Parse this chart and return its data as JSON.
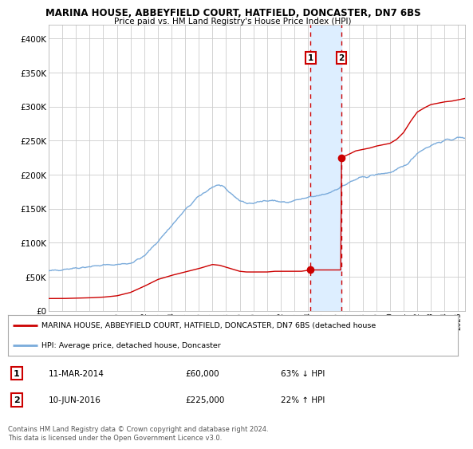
{
  "title": "MARINA HOUSE, ABBEYFIELD COURT, HATFIELD, DONCASTER, DN7 6BS",
  "subtitle": "Price paid vs. HM Land Registry's House Price Index (HPI)",
  "xlim_start": 1995.0,
  "xlim_end": 2025.5,
  "ylim": [
    0,
    420000
  ],
  "yticks": [
    0,
    50000,
    100000,
    150000,
    200000,
    250000,
    300000,
    350000,
    400000
  ],
  "ytick_labels": [
    "£0",
    "£50K",
    "£100K",
    "£150K",
    "£200K",
    "£250K",
    "£300K",
    "£350K",
    "£400K"
  ],
  "sale1_date": 2014.19,
  "sale1_price": 60000,
  "sale1_label": "1",
  "sale2_date": 2016.44,
  "sale2_price": 225000,
  "sale2_label": "2",
  "hpi_line_color": "#7aabdb",
  "price_line_color": "#cc0000",
  "bg_color": "#ffffff",
  "plot_bg_color": "#ffffff",
  "grid_color": "#cccccc",
  "shade_color": "#ddeeff",
  "dashed_line_color": "#cc0000",
  "legend_label_red": "MARINA HOUSE, ABBEYFIELD COURT, HATFIELD, DONCASTER, DN7 6BS (detached house",
  "legend_label_blue": "HPI: Average price, detached house, Doncaster",
  "table_row1": [
    "1",
    "11-MAR-2014",
    "£60,000",
    "63% ↓ HPI"
  ],
  "table_row2": [
    "2",
    "10-JUN-2016",
    "£225,000",
    "22% ↑ HPI"
  ],
  "footnote": "Contains HM Land Registry data © Crown copyright and database right 2024.\nThis data is licensed under the Open Government Licence v3.0.",
  "xticks": [
    1995,
    1996,
    1997,
    1998,
    1999,
    2000,
    2001,
    2002,
    2003,
    2004,
    2005,
    2006,
    2007,
    2008,
    2009,
    2010,
    2011,
    2012,
    2013,
    2014,
    2015,
    2016,
    2017,
    2018,
    2019,
    2020,
    2021,
    2022,
    2023,
    2024,
    2025
  ],
  "hpi_anchors_x": [
    1995,
    1996,
    1997,
    1998,
    1999,
    2000,
    2001,
    2002,
    2003,
    2004,
    2005,
    2006,
    2007,
    2007.5,
    2008,
    2008.5,
    2009,
    2009.5,
    2010,
    2010.5,
    2011,
    2011.5,
    2012,
    2012.5,
    2013,
    2013.5,
    2014,
    2014.5,
    2015,
    2015.5,
    2016,
    2016.5,
    2017,
    2017.5,
    2018,
    2018.5,
    2019,
    2019.5,
    2020,
    2020.5,
    2021,
    2021.5,
    2022,
    2022.5,
    2023,
    2023.5,
    2024,
    2024.5,
    2025,
    2025.5
  ],
  "hpi_anchors_y": [
    58000,
    61000,
    63000,
    65000,
    67000,
    68000,
    70000,
    80000,
    102000,
    125000,
    148000,
    168000,
    182000,
    185000,
    178000,
    170000,
    162000,
    158000,
    158000,
    160000,
    163000,
    162000,
    160000,
    159000,
    162000,
    164000,
    166000,
    168000,
    170000,
    173000,
    178000,
    183000,
    188000,
    193000,
    196000,
    198000,
    200000,
    202000,
    203000,
    207000,
    212000,
    220000,
    232000,
    238000,
    243000,
    247000,
    250000,
    252000,
    254000,
    255000
  ],
  "price_anchors_x": [
    1995,
    1996,
    1997,
    1998,
    1999,
    2000,
    2001,
    2002,
    2003,
    2004,
    2005,
    2006,
    2006.5,
    2007,
    2007.5,
    2008,
    2008.5,
    2009,
    2009.5,
    2010,
    2010.5,
    2011,
    2011.5,
    2012,
    2012.5,
    2013,
    2013.5,
    2014.18,
    2014.19,
    2014.2,
    2016.43,
    2016.44,
    2016.45,
    2017,
    2017.5,
    2018,
    2018.5,
    2019,
    2019.5,
    2020,
    2020.5,
    2021,
    2021.5,
    2022,
    2022.5,
    2023,
    2023.5,
    2024,
    2024.5,
    2025,
    2025.5
  ],
  "price_anchors_y": [
    18000,
    18000,
    18500,
    19000,
    20000,
    22000,
    27000,
    36000,
    46000,
    52000,
    57000,
    62000,
    65000,
    68000,
    67000,
    64000,
    61000,
    58000,
    57000,
    57000,
    57000,
    57000,
    58000,
    58000,
    58000,
    58000,
    58000,
    60000,
    60000,
    60000,
    60000,
    225000,
    225000,
    230000,
    235000,
    237000,
    239000,
    242000,
    244000,
    246000,
    252000,
    262000,
    278000,
    292000,
    298000,
    303000,
    305000,
    307000,
    308000,
    310000,
    312000
  ]
}
